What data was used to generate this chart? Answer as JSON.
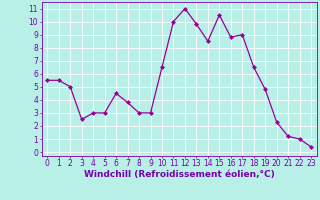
{
  "x": [
    0,
    1,
    2,
    3,
    4,
    5,
    6,
    7,
    8,
    9,
    10,
    11,
    12,
    13,
    14,
    15,
    16,
    17,
    18,
    19,
    20,
    21,
    22,
    23
  ],
  "y": [
    5.5,
    5.5,
    5.0,
    2.5,
    3.0,
    3.0,
    4.5,
    3.8,
    3.0,
    3.0,
    6.5,
    10.0,
    11.0,
    9.8,
    8.5,
    10.5,
    8.8,
    9.0,
    6.5,
    4.8,
    2.3,
    1.2,
    1.0,
    0.4
  ],
  "line_color": "#990099",
  "marker": "D",
  "marker_size": 2,
  "bg_color": "#b8f0e8",
  "grid_color": "#ffffff",
  "xlabel": "Windchill (Refroidissement éolien,°C)",
  "ylim": [
    -0.3,
    11.5
  ],
  "xlim": [
    -0.5,
    23.5
  ],
  "yticks": [
    0,
    1,
    2,
    3,
    4,
    5,
    6,
    7,
    8,
    9,
    10,
    11
  ],
  "xticks": [
    0,
    1,
    2,
    3,
    4,
    5,
    6,
    7,
    8,
    9,
    10,
    11,
    12,
    13,
    14,
    15,
    16,
    17,
    18,
    19,
    20,
    21,
    22,
    23
  ],
  "tick_label_size": 5.5,
  "xlabel_size": 6.5,
  "xlabel_color": "#7700aa",
  "tick_color": "#7700aa",
  "spine_color": "#7700aa"
}
